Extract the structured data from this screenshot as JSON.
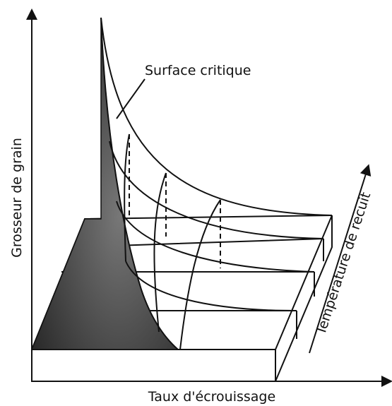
{
  "labels": {
    "surface": "Surface critique",
    "y_axis": "Grosseur de grain",
    "x_axis": "Taux d'écrouissage",
    "z_axis": "Température de recuit"
  }
}
